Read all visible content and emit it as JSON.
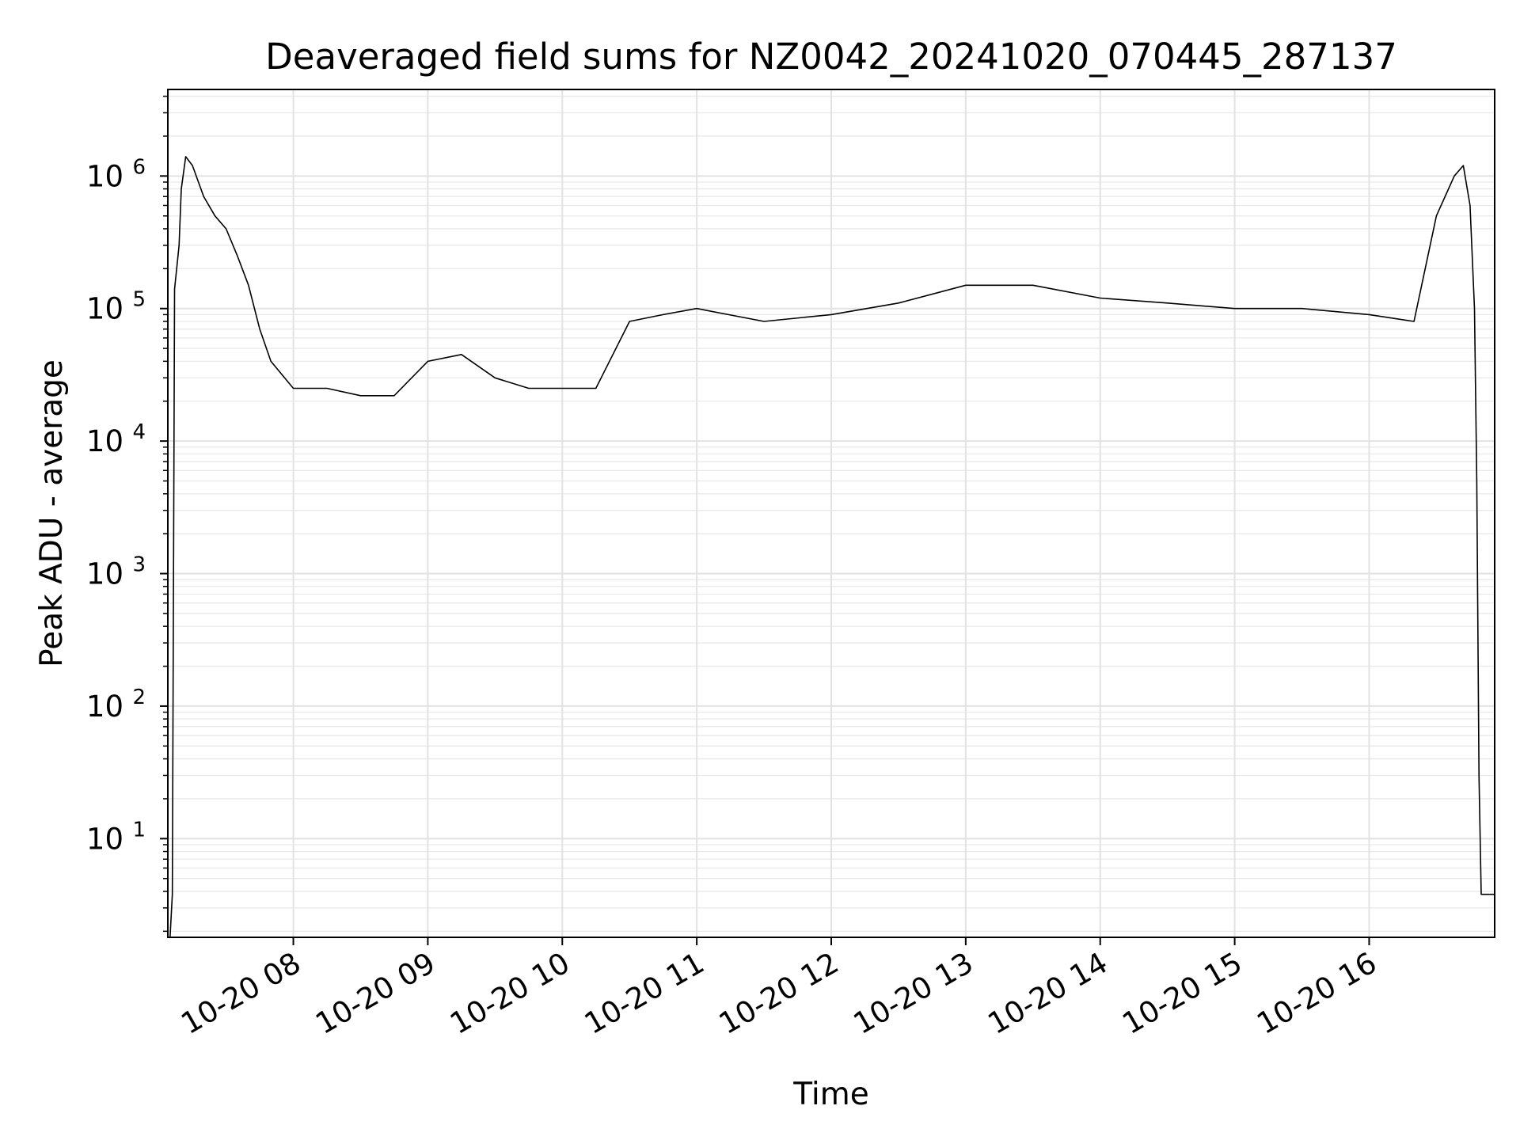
{
  "chart_data": {
    "type": "line",
    "title": "Deaveraged field sums for NZ0042_20241020_070445_287137",
    "xlabel": "Time",
    "ylabel": "Peak ADU - average",
    "yscale": "log",
    "ylim": [
      1.8,
      4500000
    ],
    "xlim": [
      "2024-10-20T07:04",
      "2024-10-20T16:56"
    ],
    "grid": true,
    "x_tick_labels": [
      "10-20 08",
      "10-20 09",
      "10-20 10",
      "10-20 11",
      "10-20 12",
      "10-20 13",
      "10-20 14",
      "10-20 15",
      "10-20 16"
    ],
    "x_tick_times": [
      "2024-10-20T08:00",
      "2024-10-20T09:00",
      "2024-10-20T10:00",
      "2024-10-20T11:00",
      "2024-10-20T12:00",
      "2024-10-20T13:00",
      "2024-10-20T14:00",
      "2024-10-20T15:00",
      "2024-10-20T16:00"
    ],
    "y_tick_base": "10",
    "y_tick_exponents": [
      "1",
      "2",
      "3",
      "4",
      "5",
      "6"
    ],
    "series": [
      {
        "color": "#000000",
        "x": [
          "2024-10-20T07:05",
          "2024-10-20T07:06",
          "2024-10-20T07:07",
          "2024-10-20T07:09",
          "2024-10-20T07:10",
          "2024-10-20T07:12",
          "2024-10-20T07:15",
          "2024-10-20T07:20",
          "2024-10-20T07:25",
          "2024-10-20T07:30",
          "2024-10-20T07:35",
          "2024-10-20T07:40",
          "2024-10-20T07:45",
          "2024-10-20T07:50",
          "2024-10-20T08:00",
          "2024-10-20T08:15",
          "2024-10-20T08:30",
          "2024-10-20T08:45",
          "2024-10-20T09:00",
          "2024-10-20T09:15",
          "2024-10-20T09:30",
          "2024-10-20T09:45",
          "2024-10-20T10:00",
          "2024-10-20T10:15",
          "2024-10-20T10:30",
          "2024-10-20T10:45",
          "2024-10-20T11:00",
          "2024-10-20T11:30",
          "2024-10-20T12:00",
          "2024-10-20T12:30",
          "2024-10-20T13:00",
          "2024-10-20T13:30",
          "2024-10-20T14:00",
          "2024-10-20T14:30",
          "2024-10-20T15:00",
          "2024-10-20T15:30",
          "2024-10-20T16:00",
          "2024-10-20T16:20",
          "2024-10-20T16:30",
          "2024-10-20T16:38",
          "2024-10-20T16:42",
          "2024-10-20T16:45",
          "2024-10-20T16:47",
          "2024-10-20T16:48",
          "2024-10-20T16:49",
          "2024-10-20T16:50",
          "2024-10-20T16:53",
          "2024-10-20T16:56"
        ],
        "y": [
          1.8,
          3.8,
          140000,
          300000,
          800000,
          1400000,
          1200000,
          700000,
          500000,
          400000,
          250000,
          150000,
          70000,
          40000,
          25000,
          25000,
          22000,
          22000,
          40000,
          45000,
          30000,
          25000,
          25000,
          25000,
          80000,
          90000,
          100000,
          80000,
          90000,
          110000,
          150000,
          150000,
          120000,
          110000,
          100000,
          100000,
          90000,
          80000,
          500000,
          1000000,
          1200000,
          600000,
          100000,
          5000,
          30,
          3.8,
          3.8,
          3.8
        ]
      }
    ]
  }
}
